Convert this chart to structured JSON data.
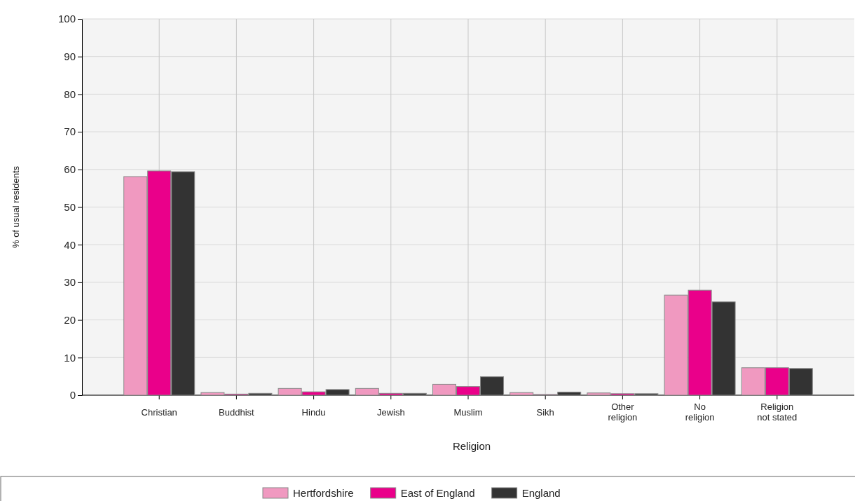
{
  "chart_data": {
    "type": "bar",
    "xlabel": "Religion",
    "ylabel": "% of usual residents",
    "categories": [
      "Christian",
      "Buddhist",
      "Hindu",
      "Jewish",
      "Muslim",
      "Sikh",
      "Other religion",
      "No religion",
      "Religion not stated"
    ],
    "series": [
      {
        "name": "Hertfordshire",
        "color": "#f099c0",
        "values": [
          58.1,
          0.7,
          1.8,
          1.8,
          2.9,
          0.7,
          0.6,
          26.6,
          7.3
        ]
      },
      {
        "name": "East of England",
        "color": "#ea008a",
        "values": [
          59.6,
          0.3,
          0.9,
          0.5,
          2.3,
          0.2,
          0.4,
          27.9,
          7.3
        ]
      },
      {
        "name": "England",
        "color": "#333333",
        "values": [
          59.4,
          0.5,
          1.5,
          0.5,
          4.9,
          0.8,
          0.4,
          24.8,
          7.1
        ]
      }
    ],
    "ylim": [
      0,
      100
    ],
    "yticks": [
      0,
      10,
      20,
      30,
      40,
      50,
      60,
      70,
      80,
      90,
      100
    ],
    "grid": true,
    "legend": "bottom"
  }
}
